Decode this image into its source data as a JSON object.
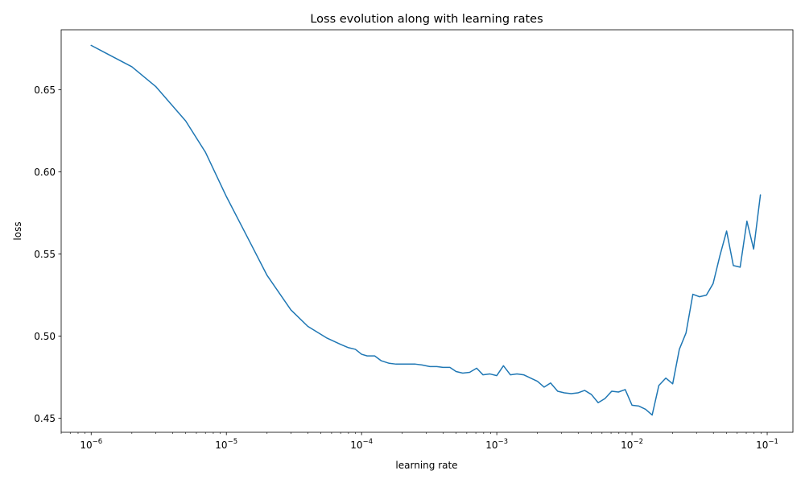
{
  "chart_data": {
    "type": "line",
    "title": "Loss evolution along with learning rates",
    "xlabel": "learning rate",
    "ylabel": "loss",
    "xscale": "log",
    "xlim": [
      6e-07,
      0.155
    ],
    "ylim": [
      0.4415,
      0.6865
    ],
    "grid": false,
    "x_ticks": [
      {
        "value": 1e-06,
        "base": "10",
        "exp": "−6"
      },
      {
        "value": 1e-05,
        "base": "10",
        "exp": "−5"
      },
      {
        "value": 0.0001,
        "base": "10",
        "exp": "−4"
      },
      {
        "value": 0.001,
        "base": "10",
        "exp": "−3"
      },
      {
        "value": 0.01,
        "base": "10",
        "exp": "−2"
      },
      {
        "value": 0.1,
        "base": "10",
        "exp": "−1"
      }
    ],
    "y_ticks": [
      {
        "value": 0.45,
        "label": "0.45"
      },
      {
        "value": 0.5,
        "label": "0.50"
      },
      {
        "value": 0.55,
        "label": "0.55"
      },
      {
        "value": 0.6,
        "label": "0.60"
      },
      {
        "value": 0.65,
        "label": "0.65"
      }
    ],
    "series": [
      {
        "color": "#1f77b4",
        "x": [
          1e-06,
          2e-06,
          3e-06,
          5e-06,
          7e-06,
          1e-05,
          1.5e-05,
          2e-05,
          3e-05,
          4e-05,
          5.5e-05,
          7e-05,
          8e-05,
          9e-05,
          0.0001,
          0.00011,
          0.000125,
          0.00014,
          0.00016,
          0.00018,
          0.0002,
          0.00025,
          0.00028,
          0.00032,
          0.00036,
          0.0004,
          0.00045,
          0.0005,
          0.00056,
          0.00063,
          0.00071,
          0.00079,
          0.00089,
          0.001,
          0.00112,
          0.00126,
          0.00141,
          0.00158,
          0.00178,
          0.002,
          0.00224,
          0.0025,
          0.00282,
          0.00316,
          0.00355,
          0.00398,
          0.00447,
          0.00501,
          0.00562,
          0.00631,
          0.00708,
          0.00794,
          0.00891,
          0.01,
          0.0112,
          0.0126,
          0.0141,
          0.0158,
          0.0178,
          0.02,
          0.0224,
          0.0251,
          0.0282,
          0.0316,
          0.0355,
          0.0398,
          0.0447,
          0.0501,
          0.0562,
          0.0631,
          0.0708,
          0.0794,
          0.0891
        ],
        "y": [
          0.677,
          0.664,
          0.652,
          0.631,
          0.612,
          0.585,
          0.557,
          0.537,
          0.516,
          0.506,
          0.499,
          0.495,
          0.493,
          0.492,
          0.489,
          0.488,
          0.488,
          0.485,
          0.4835,
          0.483,
          0.483,
          0.483,
          0.4825,
          0.4815,
          0.4815,
          0.481,
          0.481,
          0.4785,
          0.4775,
          0.478,
          0.4805,
          0.4765,
          0.477,
          0.476,
          0.482,
          0.4765,
          0.477,
          0.4765,
          0.4745,
          0.4725,
          0.469,
          0.4715,
          0.4665,
          0.4655,
          0.465,
          0.4655,
          0.467,
          0.4645,
          0.4595,
          0.462,
          0.4665,
          0.466,
          0.4675,
          0.458,
          0.4575,
          0.4555,
          0.452,
          0.47,
          0.4745,
          0.471,
          0.492,
          0.502,
          0.5255,
          0.524,
          0.525,
          0.532,
          0.549,
          0.564,
          0.543,
          0.542,
          0.57,
          0.553,
          0.586
        ]
      }
    ]
  }
}
